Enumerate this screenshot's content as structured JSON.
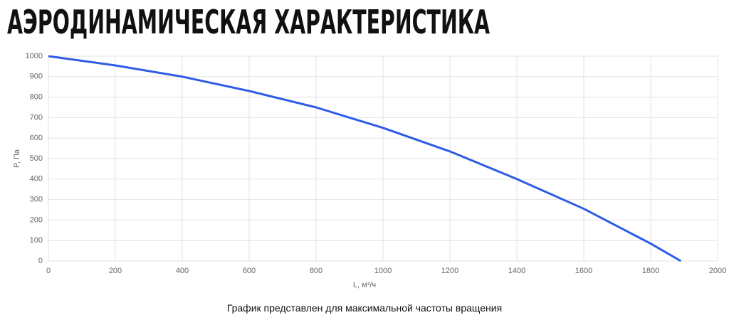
{
  "chart_data": {
    "type": "line",
    "title": "АЭРОДИНАМИЧЕСКАЯ ХАРАКТЕРИСТИКА",
    "x_label": "L, м³/ч",
    "y_label": "P, Па",
    "note": "График представлен для максимальной частоты вращения",
    "x": [
      0,
      200,
      400,
      600,
      800,
      1000,
      1200,
      1400,
      1600,
      1800,
      1890
    ],
    "values": [
      1000,
      955,
      900,
      830,
      750,
      650,
      535,
      400,
      255,
      85,
      0
    ],
    "color": "#2f5be6",
    "xlim": [
      0,
      2000
    ],
    "xticks": [
      0,
      200,
      400,
      600,
      800,
      1000,
      1200,
      1400,
      1600,
      1800,
      2000
    ],
    "ylim": [
      0,
      1000
    ],
    "yticks": [
      0,
      100,
      200,
      300,
      400,
      500,
      600,
      700,
      800,
      900,
      1000
    ],
    "grid": true
  }
}
